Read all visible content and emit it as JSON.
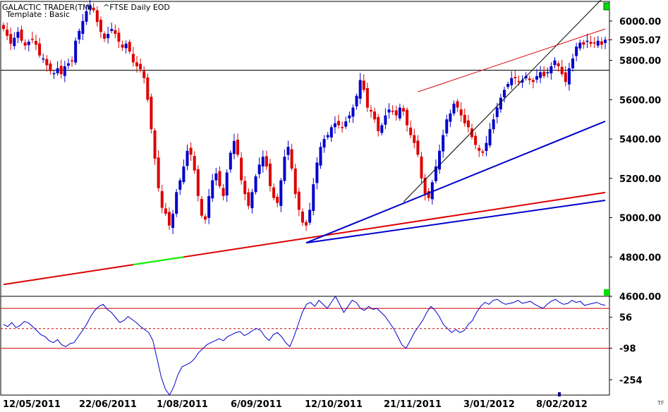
{
  "header": {
    "app_title": "GALACTIC TRADER(TM)",
    "symbol_label": "^FTSE Daily EOD",
    "template_label": "Template : Basic"
  },
  "corner_badge": "TF",
  "colors": {
    "up_candle": "#0000cc",
    "down_candle": "#dd0000",
    "trendline_blue": "#0000cc",
    "trendline_red": "#dd0000",
    "support_line": "#000000",
    "oscillator": "#0000cc",
    "band_line": "#cc0000",
    "marker": "#00dd00",
    "highlight": "#00ff00"
  },
  "chart_data": [
    {
      "type": "candlestick",
      "title": "^FTSE Daily EOD",
      "ylim": [
        4600,
        6100
      ],
      "y_ticks": [
        "6000.00",
        "5905.07",
        "5800.00",
        "5600.00",
        "5400.00",
        "5200.00",
        "5000.00",
        "4800.00",
        "4600.00"
      ],
      "x_tick_labels": [
        "12/05/2011",
        "22/06/2011",
        "1/08/2011",
        "6/09/2011",
        "12/10/2011",
        "21/11/2011",
        "3/01/2012",
        "8/02/2012"
      ],
      "last_price": 5905.07,
      "horizontal_line": 5750,
      "close_series": [
        5960,
        5925,
        5885,
        5915,
        5945,
        5900,
        5875,
        5895,
        5905,
        5880,
        5825,
        5810,
        5775,
        5745,
        5735,
        5760,
        5730,
        5770,
        5785,
        5795,
        5900,
        5950,
        6000,
        6050,
        6080,
        6055,
        5995,
        5945,
        5910,
        5935,
        5960,
        5935,
        5895,
        5865,
        5885,
        5845,
        5790,
        5770,
        5755,
        5710,
        5600,
        5450,
        5300,
        5150,
        5050,
        5020,
        4960,
        5020,
        5130,
        5190,
        5260,
        5340,
        5320,
        5240,
        5110,
        5010,
        4990,
        5110,
        5190,
        5225,
        5160,
        5110,
        5230,
        5330,
        5390,
        5320,
        5190,
        5120,
        5060,
        5130,
        5210,
        5270,
        5310,
        5260,
        5160,
        5100,
        5075,
        5190,
        5310,
        5360,
        5250,
        5120,
        5040,
        4975,
        4960,
        5040,
        5170,
        5280,
        5360,
        5400,
        5420,
        5460,
        5480,
        5470,
        5460,
        5490,
        5520,
        5560,
        5620,
        5700,
        5650,
        5560,
        5540,
        5500,
        5440,
        5470,
        5520,
        5550,
        5540,
        5520,
        5560,
        5540,
        5470,
        5420,
        5380,
        5320,
        5200,
        5120,
        5100,
        5180,
        5260,
        5340,
        5420,
        5500,
        5530,
        5580,
        5560,
        5520,
        5480,
        5460,
        5410,
        5370,
        5340,
        5330,
        5380,
        5450,
        5500,
        5560,
        5610,
        5650,
        5680,
        5710,
        5710,
        5690,
        5700,
        5720,
        5700,
        5690,
        5720,
        5740,
        5720,
        5740,
        5770,
        5800,
        5770,
        5730,
        5690,
        5760,
        5810,
        5870,
        5890,
        5880,
        5900,
        5885,
        5890,
        5900,
        5880,
        5905
      ],
      "trendlines": [
        {
          "name": "base-red",
          "color": "red",
          "from": {
            "bar": 0,
            "price": 4660
          },
          "to": {
            "bar": 167,
            "price": 5128
          }
        },
        {
          "name": "base-blue-a",
          "color": "blue",
          "from": {
            "bar": 84,
            "price": 4872
          },
          "to": {
            "bar": 167,
            "price": 5088
          }
        },
        {
          "name": "base-blue-b",
          "color": "blue",
          "from": {
            "bar": 84,
            "price": 4872
          },
          "to": {
            "bar": 167,
            "price": 5490
          }
        },
        {
          "name": "steep-black",
          "color": "black",
          "from": {
            "bar": 111,
            "price": 5080
          },
          "to": {
            "bar": 167,
            "price": 6130
          }
        },
        {
          "name": "channel-red",
          "color": "red",
          "from": {
            "bar": 115,
            "price": 5640
          },
          "to": {
            "bar": 167,
            "price": 5960
          }
        }
      ]
    },
    {
      "type": "line",
      "title": "Oscillator",
      "ylim": [
        -330,
        160
      ],
      "y_ticks": [
        "56",
        "-98",
        "-254"
      ],
      "upper_band": 100,
      "lower_band": -98,
      "mid_line": 0,
      "values": [
        20,
        10,
        30,
        5,
        15,
        35,
        28,
        10,
        -10,
        -30,
        -40,
        -60,
        -70,
        -55,
        -80,
        -90,
        -75,
        -70,
        -40,
        -10,
        20,
        60,
        90,
        110,
        120,
        95,
        80,
        55,
        30,
        40,
        60,
        45,
        30,
        10,
        -5,
        -20,
        -60,
        -150,
        -240,
        -300,
        -330,
        -290,
        -230,
        -190,
        -180,
        -170,
        -150,
        -120,
        -100,
        -80,
        -70,
        -60,
        -50,
        -60,
        -40,
        -30,
        -20,
        -15,
        -35,
        -25,
        -10,
        0,
        -10,
        -40,
        -60,
        -30,
        -20,
        -40,
        -70,
        -90,
        -40,
        20,
        80,
        120,
        130,
        110,
        140,
        120,
        100,
        130,
        160,
        120,
        80,
        110,
        140,
        130,
        100,
        90,
        110,
        95,
        100,
        80,
        60,
        30,
        0,
        -40,
        -80,
        -98,
        -60,
        -20,
        10,
        40,
        80,
        110,
        90,
        60,
        20,
        0,
        -20,
        -5,
        -20,
        -10,
        20,
        40,
        80,
        110,
        130,
        120,
        140,
        145,
        130,
        120,
        125,
        130,
        140,
        125,
        130,
        135,
        120,
        110,
        100,
        120,
        135,
        145,
        130,
        120,
        125,
        140,
        130,
        135,
        115,
        120,
        125,
        130,
        120,
        115
      ]
    }
  ]
}
